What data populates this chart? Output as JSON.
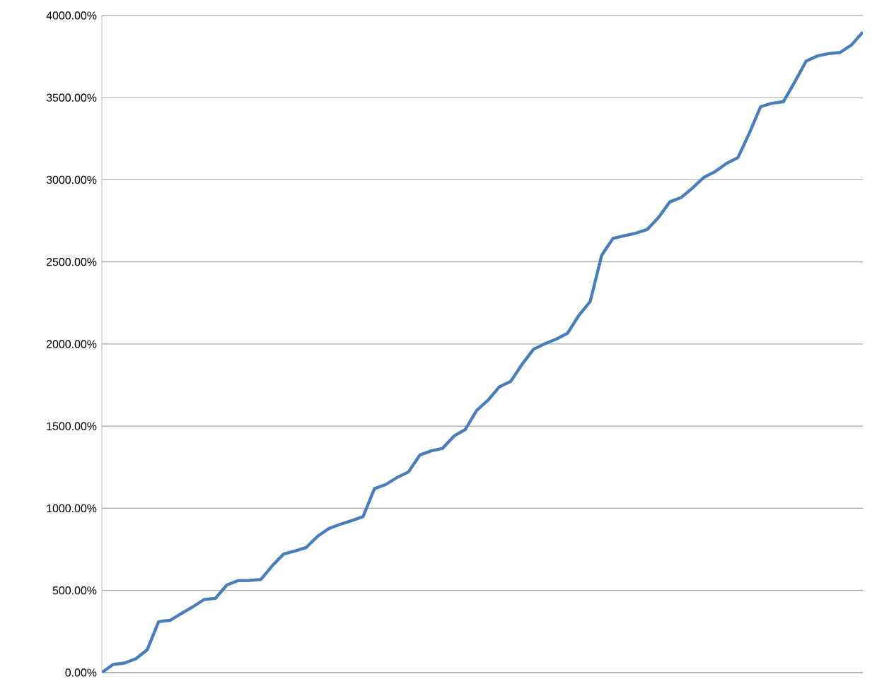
{
  "chart_data": {
    "type": "line",
    "categories": [
      null,
      null,
      null,
      null,
      null,
      null,
      null,
      null,
      null,
      null,
      null,
      null,
      null,
      null,
      null,
      null,
      null,
      null,
      null,
      null,
      null,
      null,
      null,
      null,
      null,
      null,
      null,
      null,
      null,
      null,
      null,
      null,
      null,
      null,
      null,
      null,
      null,
      null,
      null,
      null,
      null,
      null,
      null,
      null,
      null,
      null,
      null,
      null,
      null,
      null,
      null,
      null,
      null,
      null,
      null,
      null,
      null,
      null,
      null,
      null,
      null,
      null,
      null,
      null,
      null,
      null,
      null,
      null
    ],
    "series": [
      {
        "color": "#4a7ebb",
        "values": [
          0,
          50,
          58,
          85,
          140,
          310,
          318,
          360,
          400,
          445,
          452,
          533,
          560,
          561,
          567,
          650,
          722,
          740,
          762,
          830,
          878,
          903,
          925,
          950,
          1120,
          1145,
          1188,
          1222,
          1325,
          1350,
          1365,
          1440,
          1480,
          1596,
          1658,
          1740,
          1773,
          1877,
          1968,
          2002,
          2030,
          2066,
          2175,
          2260,
          2540,
          2643,
          2660,
          2675,
          2697,
          2770,
          2865,
          2892,
          2950,
          3015,
          3050,
          3100,
          3135,
          3283,
          3445,
          3466,
          3475,
          3595,
          3722,
          3754,
          3768,
          3775,
          3821,
          3899
        ]
      }
    ],
    "ylim": [
      0,
      4000
    ],
    "yticks": [
      {
        "value": 0,
        "label": "0.00%"
      },
      {
        "value": 500,
        "label": "500.00%"
      },
      {
        "value": 1000,
        "label": "1000.00%"
      },
      {
        "value": 1500,
        "label": "1500.00%"
      },
      {
        "value": 2000,
        "label": "2000.00%"
      },
      {
        "value": 2500,
        "label": "2500.00%"
      },
      {
        "value": 3000,
        "label": "3000.00%"
      },
      {
        "value": 3500,
        "label": "3500.00%"
      },
      {
        "value": 4000,
        "label": "4000.00%"
      }
    ],
    "grid": "y",
    "tick_labels": "y",
    "marker": "none",
    "line_style": "solid"
  }
}
